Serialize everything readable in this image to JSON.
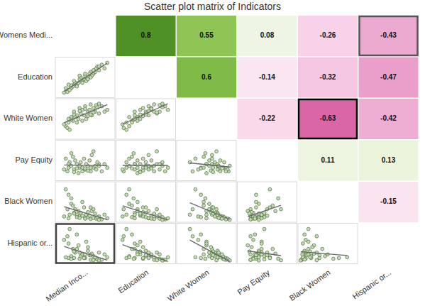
{
  "chart_data": {
    "type": "scatter_matrix",
    "title": "Scatter plot matrix of Indicators",
    "marker": "circle",
    "color": "#c5dbb5",
    "tick_labels": false,
    "data_labels": true,
    "xlim": [
      0,
      100
    ],
    "ylim": [
      0,
      100
    ],
    "color_range": [
      -1,
      1
    ],
    "variables": [
      {
        "name": "Womens Medi...",
        "column_label": "Median Inco...",
        "values": [
          20,
          25,
          30,
          35,
          40,
          45,
          50,
          55,
          60,
          65,
          70,
          75,
          80,
          90,
          15,
          18,
          22,
          28,
          32,
          38,
          42,
          48,
          52,
          58,
          62,
          68,
          72,
          85,
          12,
          25,
          35,
          45,
          55,
          65,
          40,
          30,
          50,
          20,
          60,
          75
        ]
      },
      {
        "name": "Education",
        "column_label": "Education",
        "values": [
          15,
          20,
          30,
          30,
          45,
          40,
          55,
          50,
          65,
          60,
          75,
          70,
          85,
          90,
          20,
          10,
          15,
          25,
          35,
          35,
          50,
          45,
          40,
          60,
          55,
          65,
          80,
          75,
          8,
          28,
          25,
          35,
          45,
          70,
          55,
          40,
          60,
          30,
          50,
          80
        ]
      },
      {
        "name": "White Women",
        "column_label": "White Women",
        "values": [
          40,
          55,
          70,
          60,
          80,
          75,
          85,
          70,
          90,
          80,
          88,
          65,
          85,
          75,
          30,
          25,
          20,
          45,
          55,
          50,
          65,
          60,
          50,
          75,
          60,
          70,
          82,
          70,
          35,
          48,
          40,
          45,
          58,
          68,
          72,
          62,
          78,
          50,
          62,
          92
        ]
      },
      {
        "name": "Pay Equity",
        "column_label": "Pay Equity",
        "values": [
          30,
          35,
          25,
          40,
          30,
          20,
          25,
          35,
          20,
          30,
          25,
          40,
          20,
          30,
          55,
          20,
          45,
          60,
          50,
          15,
          45,
          55,
          40,
          50,
          65,
          35,
          45,
          40,
          25,
          70,
          28,
          30,
          22,
          75,
          35,
          18,
          28,
          40,
          30,
          35
        ]
      },
      {
        "name": "Black Women",
        "column_label": "Black Women",
        "values": [
          70,
          45,
          20,
          15,
          10,
          12,
          5,
          8,
          3,
          6,
          4,
          10,
          2,
          5,
          85,
          30,
          15,
          40,
          30,
          25,
          20,
          35,
          15,
          12,
          25,
          18,
          8,
          15,
          10,
          60,
          8,
          50,
          22,
          30,
          6,
          18,
          4,
          5,
          35,
          1
        ]
      },
      {
        "name": "Hispanic or...",
        "column_label": "Hispanic or...",
        "values": [
          10,
          15,
          10,
          35,
          8,
          20,
          10,
          30,
          5,
          15,
          8,
          25,
          5,
          12,
          12,
          70,
          90,
          35,
          25,
          45,
          15,
          10,
          55,
          18,
          22,
          12,
          6,
          20,
          60,
          8,
          75,
          20,
          40,
          4,
          25,
          28,
          20,
          50,
          18,
          3
        ]
      }
    ],
    "correlations": [
      [
        0.8,
        0.55,
        0.08,
        -0.26,
        -0.43
      ],
      [
        0.6,
        -0.14,
        -0.32,
        -0.47
      ],
      [
        -0.22,
        -0.63,
        -0.42
      ],
      [
        0.11,
        0.13
      ],
      [
        -0.15
      ]
    ]
  }
}
